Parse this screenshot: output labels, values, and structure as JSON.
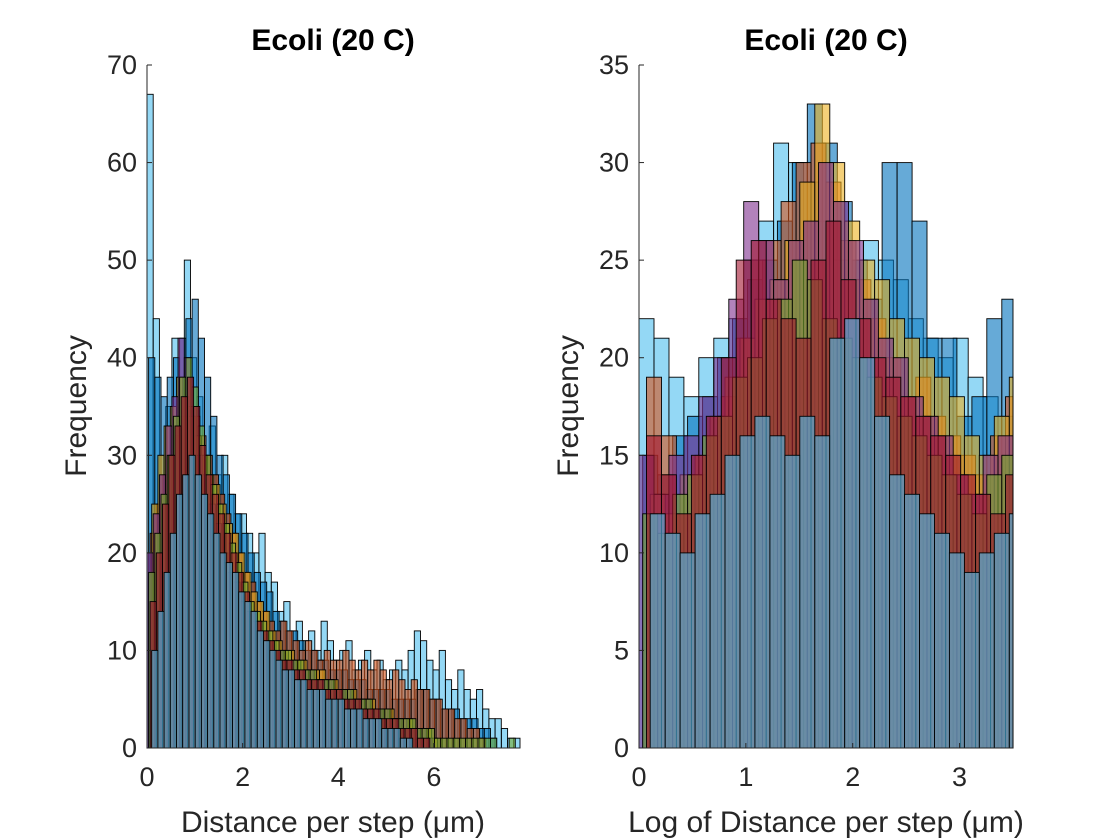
{
  "colors": [
    "#4DBEEE",
    "#0072BD",
    "#D95319",
    "#EDB120",
    "#7E2F8E",
    "#77AC30",
    "#A2142F"
  ],
  "chart_data": [
    {
      "type": "histogram",
      "title": "Ecoli (20 C)",
      "xlabel": "Distance per step (μm)",
      "ylabel": "Frequency",
      "xlim": [
        0,
        7.8
      ],
      "ylim": [
        0,
        70
      ],
      "xticks": [
        "0",
        "2",
        "4",
        "6"
      ],
      "xtick_values": [
        0,
        2,
        4,
        6
      ],
      "yticks": [
        "0",
        "10",
        "20",
        "30",
        "40",
        "50",
        "60",
        "70"
      ],
      "ytick_values": [
        0,
        10,
        20,
        30,
        40,
        50,
        60,
        70
      ],
      "bin_width": 0.13,
      "series": [
        {
          "values": [
            67,
            44,
            30,
            35,
            42,
            38,
            50,
            40,
            36,
            30,
            33,
            28,
            30,
            26,
            24,
            24,
            22,
            20,
            22,
            18,
            17,
            14,
            15,
            12,
            13,
            11,
            12,
            10,
            13,
            11,
            9,
            10,
            11,
            8,
            9,
            10,
            8,
            9,
            7,
            8,
            9,
            8,
            10,
            12,
            11,
            9,
            8,
            10,
            7,
            6,
            8,
            6,
            5,
            6,
            4,
            3,
            3,
            2,
            1,
            1
          ]
        },
        {
          "values": [
            40,
            38,
            36,
            38,
            40,
            42,
            44,
            46,
            42,
            38,
            34,
            30,
            28,
            26,
            24,
            22,
            20,
            18,
            17,
            16,
            14,
            13,
            12,
            12,
            11,
            10,
            10,
            9,
            9,
            8,
            8,
            8,
            7,
            7,
            7,
            6,
            6,
            6,
            6,
            5,
            5,
            5,
            5,
            6,
            6,
            5,
            5,
            4,
            4,
            4,
            3,
            3,
            3,
            2,
            2,
            1
          ]
        },
        {
          "values": [
            22,
            25,
            28,
            30,
            32,
            34,
            35,
            34,
            32,
            30,
            28,
            26,
            24,
            22,
            20,
            18,
            17,
            15,
            14,
            13,
            12,
            13,
            12,
            11,
            10,
            11,
            10,
            9,
            10,
            9,
            9,
            10,
            9,
            8,
            9,
            8,
            9,
            8,
            7,
            8,
            7,
            6,
            7,
            6,
            6,
            5,
            5,
            4,
            4,
            3,
            3,
            2,
            2,
            1
          ]
        },
        {
          "values": [
            25,
            30,
            33,
            35,
            38,
            36,
            34,
            32,
            30,
            28,
            27,
            25,
            23,
            22,
            20,
            18,
            16,
            15,
            14,
            12,
            11,
            10,
            10,
            9,
            9,
            8,
            8,
            8,
            7,
            7,
            6,
            6,
            6,
            5,
            5,
            5,
            4,
            4,
            4,
            3,
            3,
            3,
            2,
            2,
            2,
            1
          ]
        },
        {
          "values": [
            20,
            24,
            28,
            33,
            36,
            42,
            40,
            35,
            30,
            28,
            25,
            23,
            20,
            18,
            17,
            15,
            14,
            13,
            12,
            11,
            10,
            10,
            9,
            9,
            8,
            8,
            8,
            7,
            7,
            7,
            6,
            6,
            6,
            5,
            5,
            5,
            4,
            4,
            4,
            3,
            3,
            3,
            2,
            2,
            2,
            1
          ]
        },
        {
          "values": [
            18,
            22,
            26,
            30,
            34,
            38,
            40,
            37,
            33,
            30,
            27,
            25,
            23,
            21,
            19,
            17,
            15,
            14,
            13,
            12,
            11,
            10,
            10,
            9,
            9,
            8,
            8,
            7,
            7,
            7,
            6,
            6,
            6,
            5,
            5,
            5,
            4,
            4,
            4,
            3,
            3,
            3,
            3,
            2,
            2,
            2,
            1,
            1,
            1,
            1,
            1,
            1,
            1,
            1,
            1,
            1,
            0,
            0,
            1
          ]
        },
        {
          "values": [
            15,
            20,
            25,
            30,
            33,
            36,
            38,
            35,
            31,
            28,
            26,
            24,
            22,
            20,
            18,
            16,
            14,
            13,
            12,
            11,
            10,
            9,
            9,
            8,
            8,
            7,
            7,
            7,
            6,
            6,
            6,
            5,
            5,
            5,
            4,
            4,
            4,
            3,
            3,
            3,
            2,
            2,
            2,
            1,
            1
          ]
        },
        {
          "values": [
            10,
            14,
            18,
            22,
            26,
            28,
            30,
            28,
            26,
            24,
            22,
            20,
            19,
            18,
            16,
            15,
            14,
            12,
            11,
            10,
            9,
            8,
            8,
            7,
            7,
            6,
            6,
            6,
            5,
            5,
            5,
            4,
            4,
            4,
            3,
            3,
            3,
            2,
            2,
            2,
            1,
            1
          ]
        }
      ]
    },
    {
      "type": "histogram",
      "title": "Ecoli (20 C)",
      "xlabel": "Log of Distance per step (μm)",
      "ylabel": "Frequency",
      "xlim": [
        0,
        3.5
      ],
      "ylim": [
        0,
        35
      ],
      "xticks": [
        "0",
        "1",
        "2",
        "3"
      ],
      "xtick_values": [
        0,
        1,
        2,
        3
      ],
      "yticks": [
        "0",
        "5",
        "10",
        "15",
        "20",
        "25",
        "30",
        "35"
      ],
      "ytick_values": [
        0,
        5,
        10,
        15,
        20,
        25,
        30,
        35
      ],
      "bin_width": 0.14,
      "series": [
        {
          "values": [
            22,
            21,
            19,
            18,
            20,
            21,
            22,
            25,
            27,
            31,
            30,
            29,
            27,
            25,
            24,
            26,
            25,
            24,
            22,
            21,
            20,
            21,
            19,
            18,
            17,
            16,
            18,
            19,
            20,
            18,
            17,
            16
          ]
        },
        {
          "values": [
            15,
            14,
            16,
            17,
            18,
            20,
            22,
            24,
            25,
            27,
            30,
            33,
            31,
            28,
            25,
            23,
            30,
            30,
            27,
            21,
            21,
            17,
            18,
            22,
            23,
            19,
            17,
            18,
            20,
            22,
            20,
            17
          ]
        },
        {
          "values": [
            19,
            16,
            12,
            14,
            16,
            18,
            21,
            25,
            26,
            28,
            30,
            31,
            29,
            26,
            24,
            22,
            20,
            18,
            19,
            17,
            16,
            15,
            14,
            16,
            18,
            21,
            22,
            23,
            25,
            23,
            20,
            18
          ]
        },
        {
          "values": [
            13,
            12,
            14,
            15,
            17,
            19,
            21,
            23,
            24,
            26,
            29,
            33,
            30,
            27,
            25,
            24,
            22,
            21,
            20,
            19,
            18,
            16,
            15,
            17,
            19,
            20,
            21,
            22,
            20,
            19,
            17,
            15
          ]
        },
        {
          "values": [
            15,
            13,
            15,
            16,
            18,
            20,
            23,
            28,
            26,
            24,
            26,
            27,
            30,
            28,
            26,
            23,
            21,
            20,
            18,
            17,
            16,
            14,
            13,
            15,
            16,
            18,
            19,
            21,
            25,
            24,
            22,
            19
          ]
        },
        {
          "values": [
            12,
            11,
            13,
            14,
            16,
            17,
            19,
            20,
            22,
            23,
            25,
            24,
            22,
            21,
            20,
            19,
            18,
            17,
            16,
            15,
            14,
            13,
            12,
            14,
            15,
            17,
            18,
            20,
            21,
            24,
            23,
            16
          ]
        },
        {
          "values": [
            16,
            14,
            12,
            15,
            17,
            20,
            25,
            26,
            23,
            22,
            21,
            25,
            27,
            24,
            22,
            20,
            19,
            18,
            17,
            16,
            15,
            14,
            13,
            12,
            14,
            16,
            18,
            21,
            25,
            23,
            20,
            15
          ]
        },
        {
          "values": [
            12,
            11,
            10,
            12,
            13,
            15,
            16,
            17,
            16,
            15,
            17,
            16,
            21,
            22,
            20,
            17,
            14,
            13,
            12,
            11,
            10,
            9,
            10,
            11,
            12,
            13,
            14,
            16,
            17,
            15,
            12,
            10
          ]
        }
      ]
    }
  ]
}
